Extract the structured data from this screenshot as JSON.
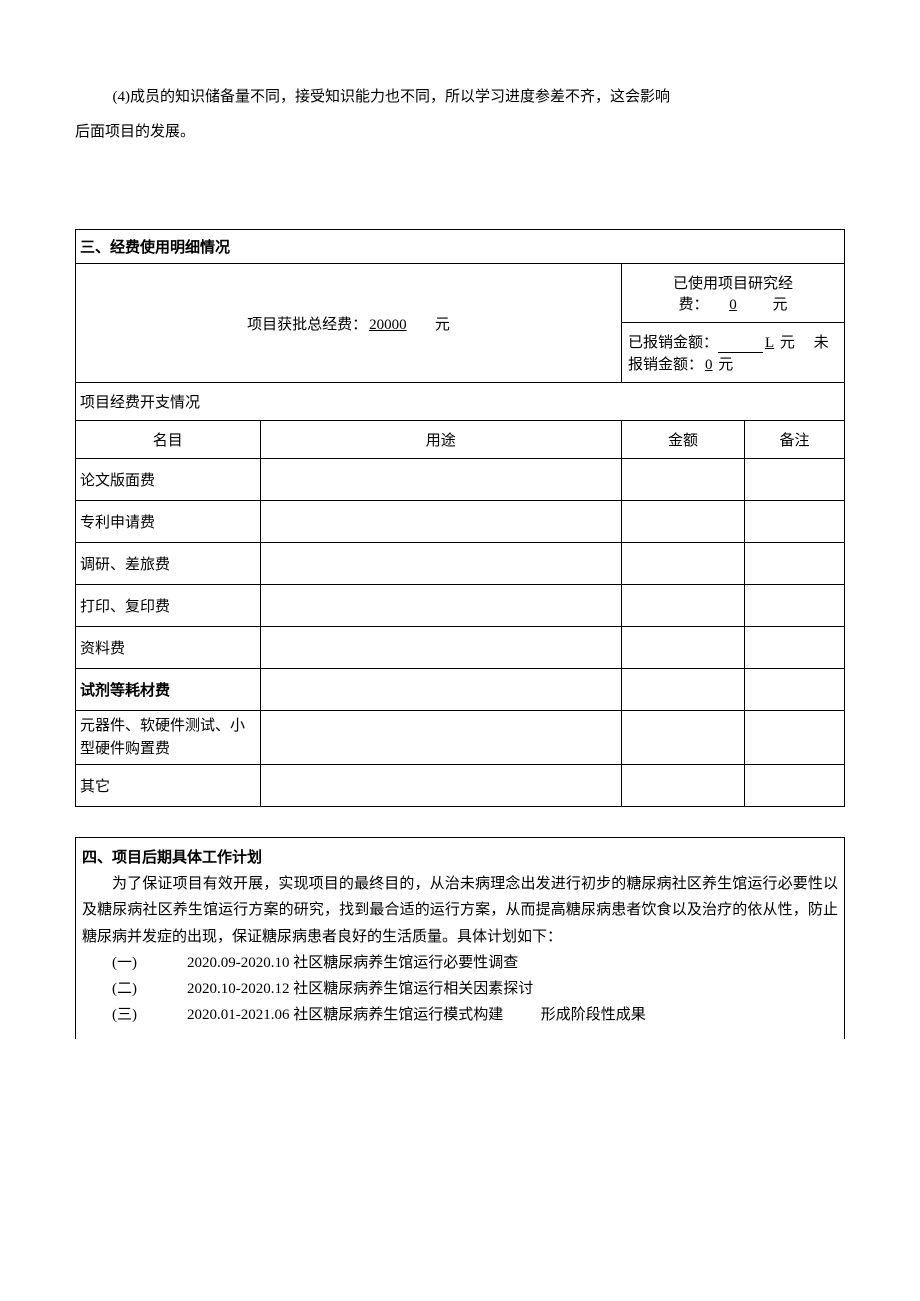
{
  "paragraph": {
    "line1": "(4)成员的知识储备量不同，接受知识能力也不同，所以学习进度参差不齐，这会影响",
    "line2": "后面项目的发展。"
  },
  "section3": {
    "title": "三、经费使用明细情况",
    "budget_label_pre": "项目获批总经费：",
    "budget_amount": "20000",
    "budget_unit": "元",
    "used_label": "已使用项目研究经费：",
    "used_amount": "0",
    "used_unit": "元",
    "reimbursed_label": "已报销金额：",
    "reimbursed_amount": "L",
    "reimbursed_unit": "元",
    "unreimbursed_label": "未报销金额：",
    "unreimbursed_amount": "0",
    "unreimbursed_unit": "元",
    "expense_header": "项目经费开支情况",
    "col_name": "名目",
    "col_use": "用途",
    "col_amount": "金额",
    "col_note": "备注",
    "rows": [
      {
        "name": "论文版面费",
        "use": "",
        "amount": "",
        "note": ""
      },
      {
        "name": "专利申请费",
        "use": "",
        "amount": "",
        "note": ""
      },
      {
        "name": "调研、差旅费",
        "use": "",
        "amount": "",
        "note": ""
      },
      {
        "name": "打印、复印费",
        "use": "",
        "amount": "",
        "note": ""
      },
      {
        "name": "资料费",
        "use": "",
        "amount": "",
        "note": ""
      },
      {
        "name": "试剂等耗材费",
        "use": "",
        "amount": "",
        "note": "",
        "bold": true
      },
      {
        "name": "元器件、软硬件测试、小型硬件购置费",
        "use": "",
        "amount": "",
        "note": ""
      },
      {
        "name": "其它",
        "use": "",
        "amount": "",
        "note": ""
      }
    ]
  },
  "section4": {
    "title": "四、项目后期具体工作计划",
    "intro": "为了保证项目有效开展，实现项目的最终目的，从治未病理念出发进行初步的糖尿病社区养生馆运行必要性以及糖尿病社区养生馆运行方案的研究，找到最合适的运行方案，从而提高糖尿病患者饮食以及治疗的依从性，防止糖尿病并发症的出现，保证糖尿病患者良好的生活质量。具体计划如下：",
    "plans": [
      {
        "label": "(一)",
        "date": "2020.09-2020.10",
        "text": "社区糖尿病养生馆运行必要性调查",
        "note": ""
      },
      {
        "label": "(二)",
        "date": "2020.10-2020.12",
        "text": "社区糖尿病养生馆运行相关因素探讨",
        "note": ""
      },
      {
        "label": "(三)",
        "date": "2020.01-2021.06",
        "text": "社区糖尿病养生馆运行模式构建",
        "note": "形成阶段性成果"
      }
    ]
  }
}
